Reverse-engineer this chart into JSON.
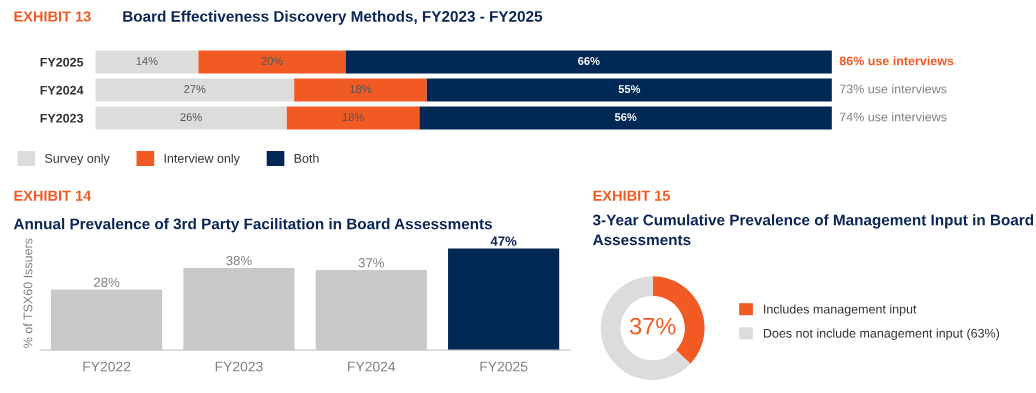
{
  "chart_data": [
    {
      "type": "bar",
      "orientation": "horizontal",
      "stacked": true,
      "title": "Board Effectiveness Discovery Methods, FY2023 - FY2025",
      "annotations": [
        "EXHIBIT 13",
        "86% use interviews",
        "73% use interviews",
        "74% use interviews"
      ],
      "categories": [
        "FY2025",
        "FY2024",
        "FY2023"
      ],
      "series": [
        {
          "name": "Survey only",
          "color": "#dcdddb",
          "values": [
            14,
            27,
            26
          ],
          "value_labels": [
            "14%",
            "27%",
            "26%"
          ]
        },
        {
          "name": "Interview only",
          "color": "#f15a22",
          "values": [
            20,
            18,
            18
          ],
          "value_labels": [
            "20%",
            "18%",
            "18%"
          ]
        },
        {
          "name": "Both",
          "color": "#002855",
          "values": [
            66,
            55,
            56
          ],
          "value_labels": [
            "66%",
            "55%",
            "56%"
          ]
        }
      ],
      "legend": "bottom left"
    },
    {
      "type": "bar",
      "title": "Annual Prevalence of 3rd Party Facilitation in Board Assessments",
      "ylabel": "% of TSX60 Issuers",
      "annotations": [
        "EXHIBIT 14"
      ],
      "categories": [
        "FY2022",
        "FY2023",
        "FY2024",
        "FY2025"
      ],
      "values": [
        28,
        38,
        37,
        47
      ],
      "colors": [
        "#c8c9c7",
        "#c8c9c7",
        "#c8c9c7",
        "#002855"
      ],
      "value_labels": [
        "28%",
        "38%",
        "37%",
        "47%"
      ]
    },
    {
      "type": "donut",
      "title": "3-Year Cumulative Prevalence of Management Input in Board Assessments",
      "annotations": [
        "EXHIBIT 15",
        "37%"
      ],
      "categories": [
        "Includes management input",
        "Does not include management input (63%)"
      ],
      "values": [
        37,
        63
      ],
      "colors": [
        "#f15a22",
        "#dcdddb"
      ],
      "legend": "right"
    }
  ]
}
